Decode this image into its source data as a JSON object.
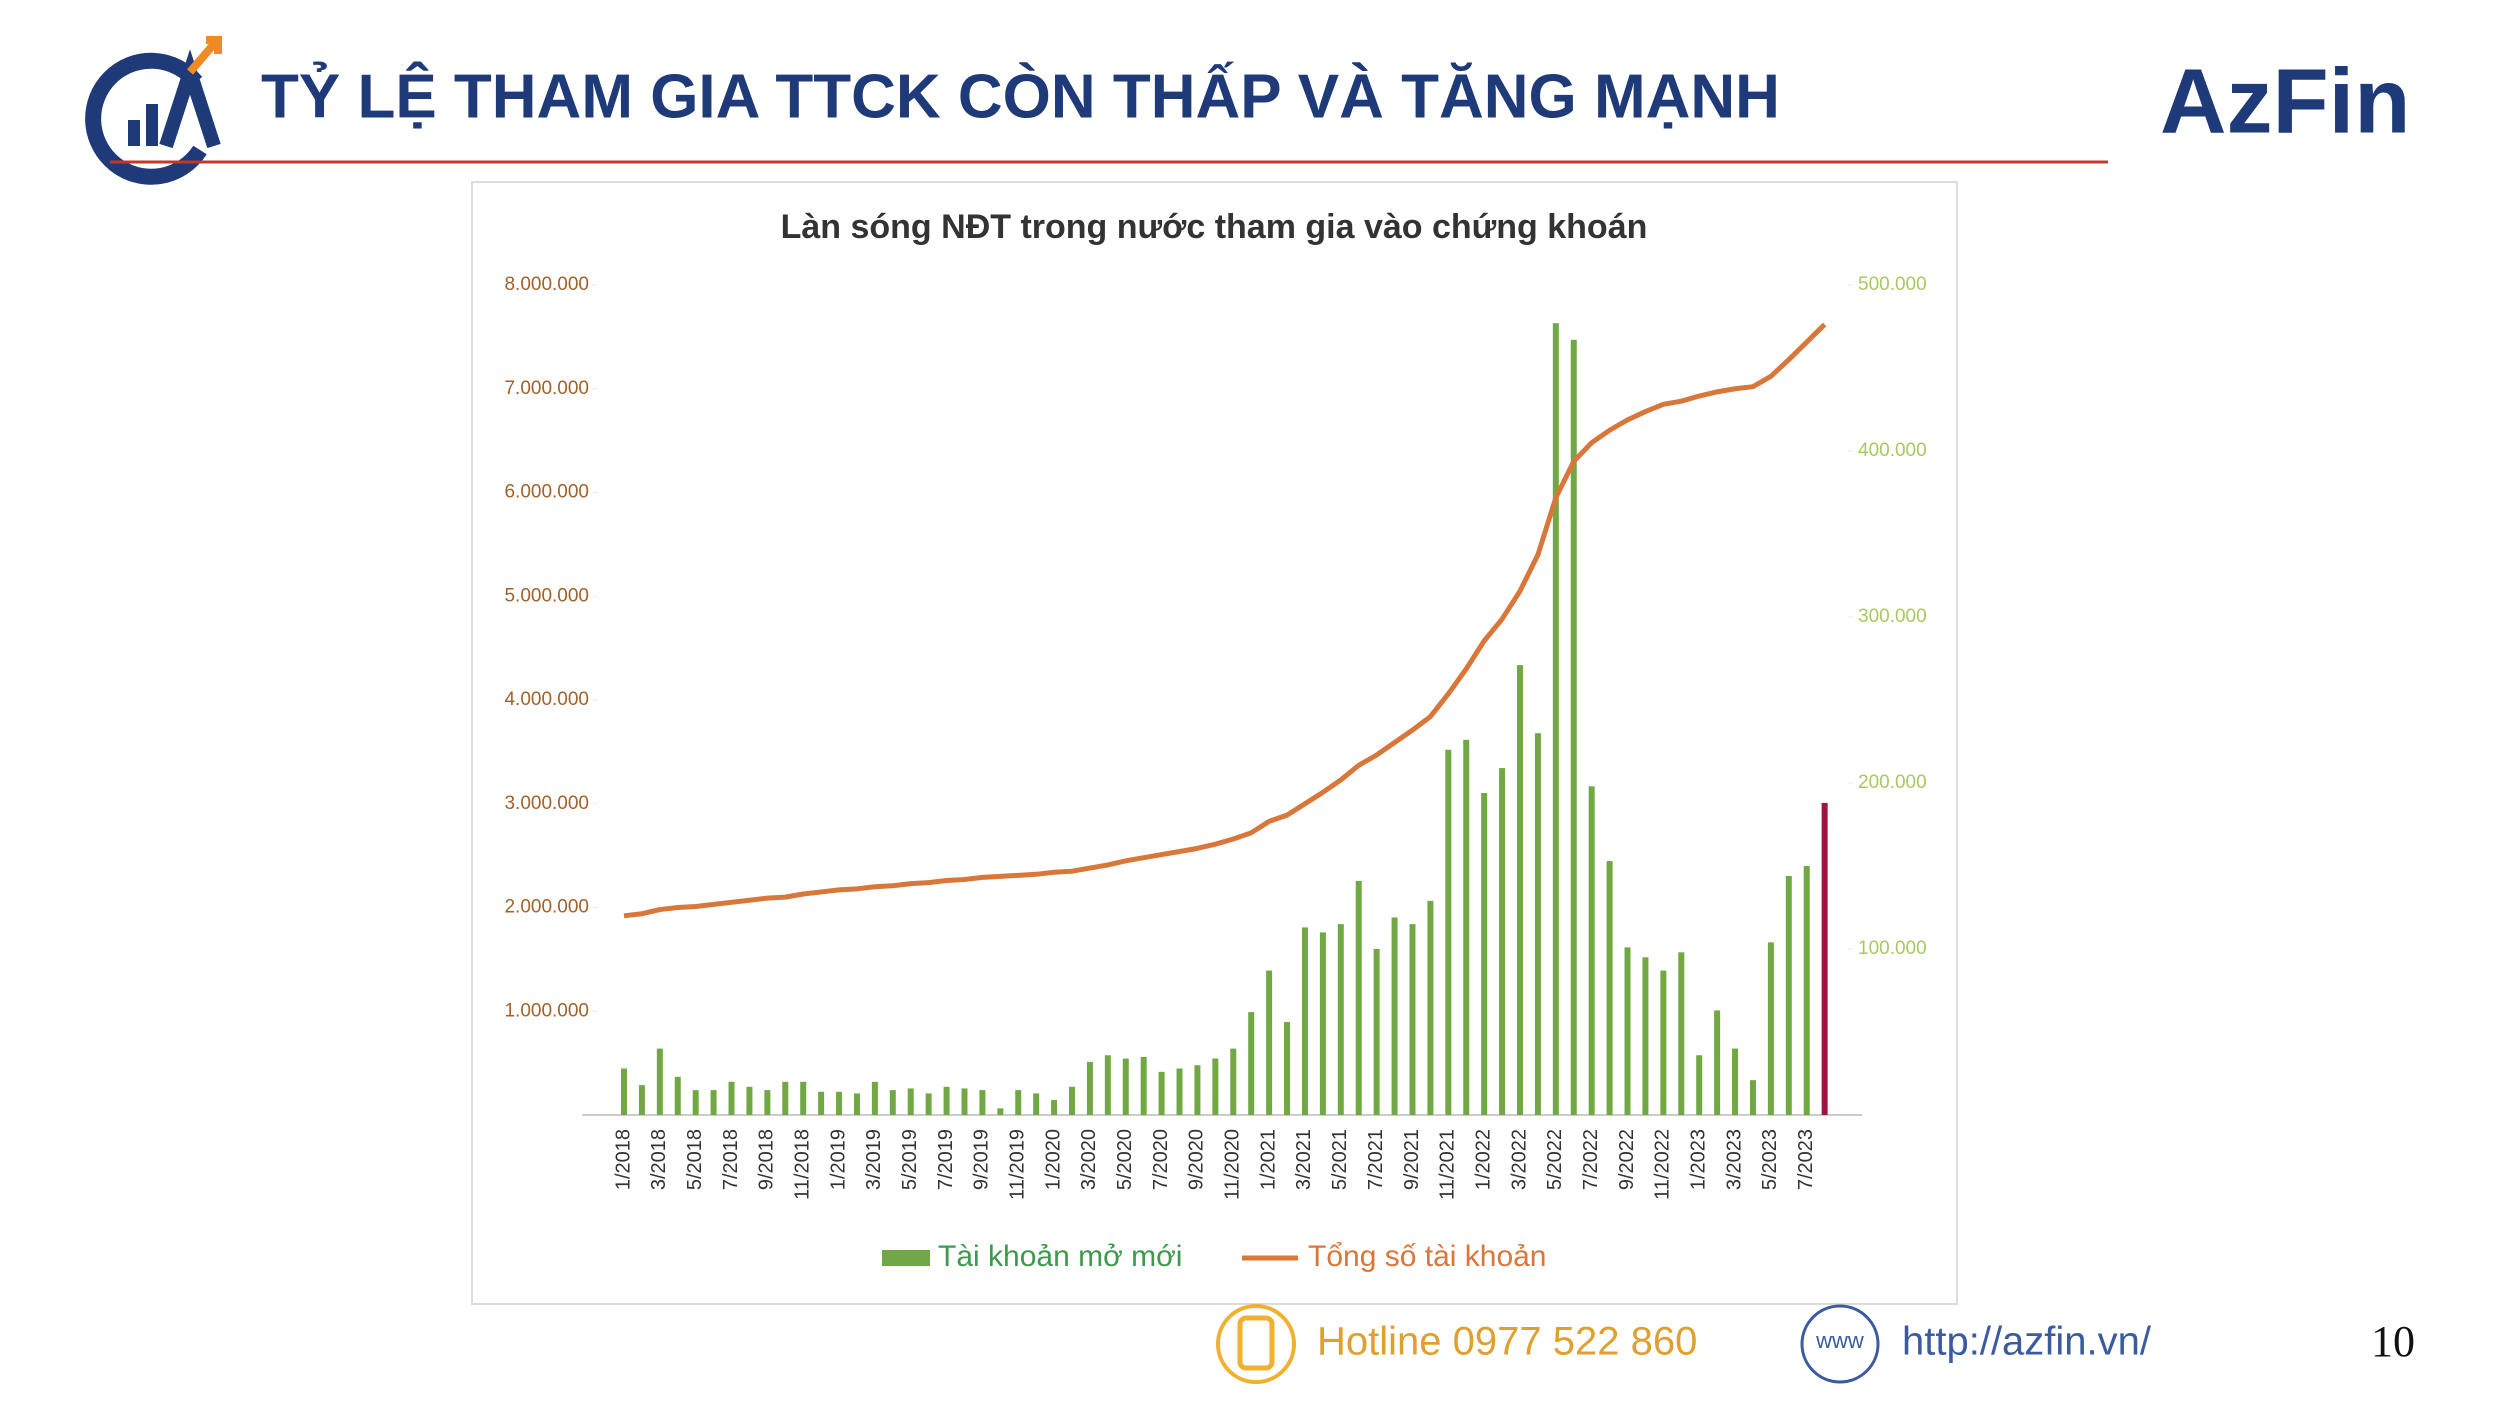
{
  "header": {
    "title": "TỶ LỆ THAM GIA TTCK CÒN THẤP VÀ TĂNG MẠNH",
    "logo": "AzFin"
  },
  "chart_data": {
    "type": "bar_line",
    "title": "Làn sóng NĐT trong nước tham gia vào chứng khoán",
    "categories": [
      "1/2018",
      null,
      "3/2018",
      null,
      "5/2018",
      null,
      "7/2018",
      null,
      "9/2018",
      null,
      "11/2018",
      null,
      "1/2019",
      null,
      "3/2019",
      null,
      "5/2019",
      null,
      "7/2019",
      null,
      "9/2019",
      null,
      "11/2019",
      null,
      "1/2020",
      null,
      "3/2020",
      null,
      "5/2020",
      null,
      "7/2020",
      null,
      "9/2020",
      null,
      "11/2020",
      null,
      "1/2021",
      null,
      "3/2021",
      null,
      "5/2021",
      null,
      "7/2021",
      null,
      "9/2021",
      null,
      "11/2021",
      null,
      "1/2022",
      null,
      "3/2022",
      null,
      "5/2022",
      null,
      "7/2022",
      null,
      "9/2022",
      null,
      "11/2022",
      null,
      "1/2023",
      null,
      "3/2023",
      null,
      "5/2023",
      null,
      "7/2023",
      null
    ],
    "series": [
      {
        "name": "Tài khoản mở mới",
        "color": "#72a843",
        "highlight_color": "#a0153e",
        "axis": "y2",
        "values": [
          28000,
          18000,
          40000,
          23000,
          15000,
          15000,
          20000,
          17000,
          15000,
          20000,
          20000,
          14000,
          14000,
          13000,
          20000,
          15000,
          16000,
          13000,
          17000,
          16000,
          15000,
          4000,
          15000,
          13000,
          9000,
          17000,
          32000,
          36000,
          34000,
          35000,
          26000,
          28000,
          30000,
          34000,
          40000,
          62000,
          87000,
          56000,
          113000,
          110000,
          115000,
          141000,
          100000,
          119000,
          115000,
          129000,
          220000,
          226000,
          194000,
          209000,
          271000,
          230000,
          477000,
          467000,
          198000,
          153000,
          101000,
          95000,
          87000,
          98000,
          36000,
          63000,
          40000,
          21000,
          104000,
          144000,
          150000,
          188000
        ]
      },
      {
        "name": "Tổng số tài khoản",
        "color": "#d9773a",
        "values": [
          1920000,
          1940000,
          1980000,
          2000000,
          2010000,
          2030000,
          2050000,
          2070000,
          2090000,
          2100000,
          2130000,
          2150000,
          2170000,
          2180000,
          2200000,
          2210000,
          2230000,
          2240000,
          2260000,
          2270000,
          2290000,
          2300000,
          2310000,
          2320000,
          2340000,
          2350000,
          2380000,
          2410000,
          2450000,
          2480000,
          2510000,
          2540000,
          2570000,
          2610000,
          2660000,
          2720000,
          2830000,
          2890000,
          3000000,
          3110000,
          3230000,
          3370000,
          3470000,
          3590000,
          3710000,
          3840000,
          4060000,
          4300000,
          4570000,
          4780000,
          5050000,
          5400000,
          5950000,
          6300000,
          6480000,
          6600000,
          6700000,
          6780000,
          6850000,
          6880000,
          6930000,
          6970000,
          7000000,
          7020000,
          7120000,
          7280000,
          7450000,
          7620000
        ]
      }
    ],
    "ylim": [
      0,
      8000000
    ],
    "yticks": [
      {
        "value": 1000000,
        "label": "1.000.000"
      },
      {
        "value": 2000000,
        "label": "2.000.000"
      },
      {
        "value": 3000000,
        "label": "3.000.000"
      },
      {
        "value": 4000000,
        "label": "4.000.000"
      },
      {
        "value": 5000000,
        "label": "5.000.000"
      },
      {
        "value": 6000000,
        "label": "6.000.000"
      },
      {
        "value": 7000000,
        "label": "7.000.000"
      },
      {
        "value": 8000000,
        "label": "8.000.000"
      }
    ],
    "y2lim": [
      0,
      500000
    ],
    "y2ticks": [
      {
        "value": 100000,
        "label": "100.000"
      },
      {
        "value": 200000,
        "label": "200.000"
      },
      {
        "value": 300000,
        "label": "300.000"
      },
      {
        "value": 400000,
        "label": "400.000"
      },
      {
        "value": 500000,
        "label": "500.000"
      }
    ],
    "legend": "bottom"
  },
  "footer": {
    "hotline": "Hotline 0977 522 860",
    "web_icon": "www",
    "website": "http://azfin.vn/",
    "page": "10"
  }
}
